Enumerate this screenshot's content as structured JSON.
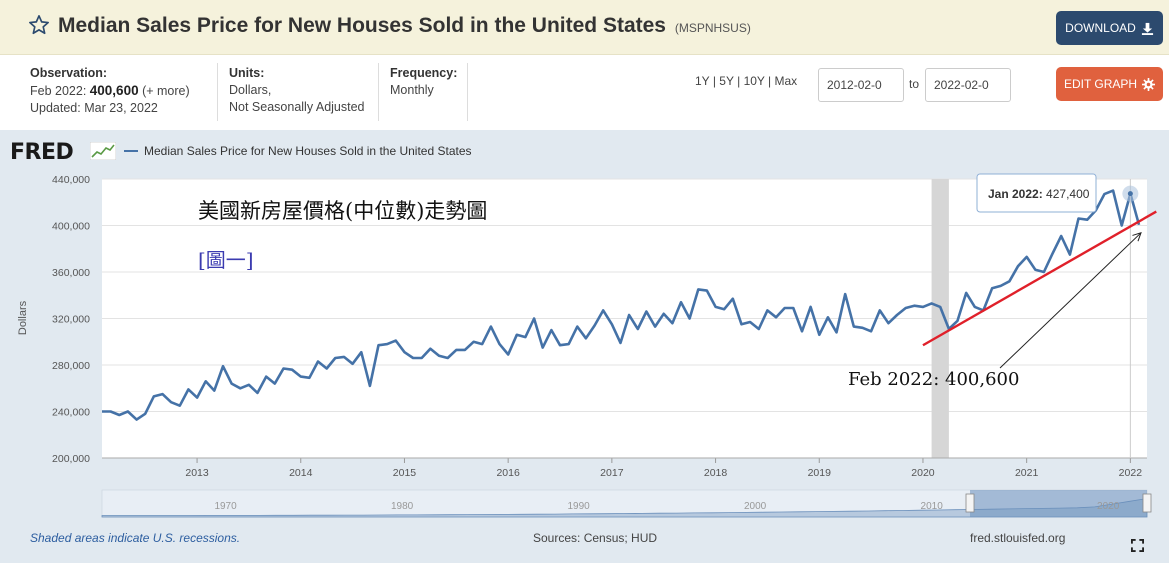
{
  "header": {
    "title": "Median Sales Price for New Houses Sold in the United States",
    "series_id": "(MSPNHSUS)",
    "download_label": "DOWNLOAD"
  },
  "meta": {
    "observation_label": "Observation:",
    "observation_period": "Feb 2022:",
    "observation_value": "400,600",
    "observation_more": "(+ more)",
    "updated": "Updated: Mar 23, 2022",
    "units_label": "Units:",
    "units_line1": "Dollars,",
    "units_line2": "Not Seasonally Adjusted",
    "frequency_label": "Frequency:",
    "frequency_value": "Monthly"
  },
  "range": {
    "links": [
      "1Y",
      "5Y",
      "10Y",
      "Max"
    ],
    "separator": "|",
    "start_date": "2012-02-0",
    "end_date": "2022-02-0",
    "to_label": "to"
  },
  "edit_label": "EDIT GRAPH",
  "brand": "FRED",
  "footer": {
    "recession_note": "Shaded areas indicate U.S. recessions.",
    "sources": "Sources: Census; HUD",
    "site": "fred.stlouisfed.org"
  },
  "icons": {
    "star": "star-icon",
    "download": "download-icon",
    "edit": "gear-icon",
    "expand": "expand-icon"
  },
  "colors": {
    "line": "#4572a7",
    "trend": "#e0202a",
    "download_button": "#2c4a6e",
    "edit_button": "#e0613e",
    "recession": "#d6d6d6",
    "annotation_title_cn": "#111111",
    "annotation_tag_cn": "#3b3bb0"
  },
  "chart_data": {
    "type": "line",
    "series": [
      {
        "name": "Median Sales Price for New Houses Sold in the United States",
        "start": "2012-02",
        "values": [
          240000,
          240000,
          237000,
          240000,
          233000,
          238000,
          253000,
          255000,
          248000,
          245000,
          259000,
          252000,
          266000,
          258000,
          279000,
          264000,
          260000,
          263000,
          256000,
          270000,
          264000,
          277000,
          276000,
          270000,
          269000,
          283000,
          277000,
          286000,
          287000,
          281000,
          291000,
          262000,
          297000,
          298000,
          301000,
          291000,
          286000,
          286000,
          294000,
          288000,
          286000,
          293000,
          293000,
          300000,
          298000,
          313000,
          298000,
          289000,
          306000,
          304000,
          320000,
          295000,
          310000,
          297000,
          298000,
          313000,
          303000,
          314000,
          327000,
          315000,
          299000,
          323000,
          311000,
          326000,
          313000,
          324000,
          316000,
          334000,
          320000,
          345000,
          344000,
          330000,
          328000,
          337000,
          315000,
          317000,
          311000,
          327000,
          321000,
          329000,
          329000,
          309000,
          330000,
          306000,
          321000,
          308000,
          341000,
          313000,
          312000,
          309000,
          327000,
          316000,
          323000,
          329000,
          331000,
          330000,
          333000,
          330000,
          311000,
          318000,
          342000,
          330000,
          327000,
          346000,
          348000,
          352000,
          365000,
          373000,
          362000,
          360000,
          376000,
          391000,
          375000,
          406000,
          405000,
          413000,
          427000,
          430000,
          400000,
          427400,
          400600
        ]
      }
    ],
    "ylabel": "Dollars",
    "ylim": [
      200000,
      440000
    ],
    "yticks": [
      "200,000",
      "240,000",
      "280,000",
      "320,000",
      "360,000",
      "400,000",
      "440,000"
    ],
    "ytick_values": [
      200000,
      240000,
      280000,
      320000,
      360000,
      400000,
      440000
    ],
    "xticks": [
      "2013",
      "2014",
      "2015",
      "2016",
      "2017",
      "2018",
      "2019",
      "2020",
      "2021",
      "2022"
    ],
    "xtick_dates": [
      "2013-01",
      "2014-01",
      "2015-01",
      "2016-01",
      "2017-01",
      "2018-01",
      "2019-01",
      "2020-01",
      "2021-01",
      "2022-01"
    ],
    "xlim": [
      "2012-02",
      "2022-02"
    ],
    "recessions": [
      {
        "start": "2020-02",
        "end": "2020-04"
      }
    ],
    "grid": true,
    "tooltip": {
      "label": "Jan 2022:",
      "value": "427,400",
      "date": "2022-01"
    },
    "annotations": {
      "title_cn": "美國新房屋價格(中位數)走勢圖",
      "tag_cn": "[圖一]",
      "callout": "Feb 2022: 400,600",
      "callout_date": "2022-02",
      "callout_value": 400600,
      "trendline": {
        "start": {
          "date": "2020-01",
          "value": 297000
        },
        "end": {
          "date": "2022-04",
          "value": 412000
        }
      }
    },
    "navigator": {
      "ticks": [
        "1970",
        "1980",
        "1990",
        "2000",
        "2010",
        "2020"
      ]
    }
  }
}
